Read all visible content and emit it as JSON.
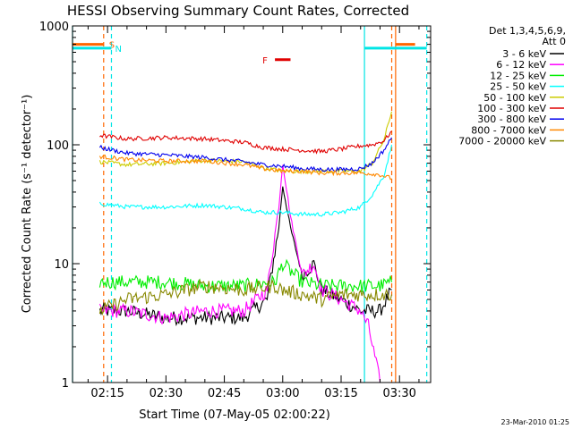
{
  "chart_data": {
    "type": "line",
    "title": "HESSI Observing Summary Count Rates, Corrected",
    "xlabel": "Start Time (07-May-05 02:00:22)",
    "ylabel": "Corrected Count Rate (s⁻¹ detector⁻¹)",
    "y_scale": "log",
    "ylim": [
      1,
      1000
    ],
    "xlim": [
      "02:06",
      "03:38"
    ],
    "x_ticks": [
      "02:15",
      "02:30",
      "02:45",
      "03:00",
      "03:15",
      "03:30"
    ],
    "y_ticks": [
      "1",
      "10",
      "100",
      "1000"
    ],
    "timestamp": "23-Mar-2010 01:25",
    "legend": {
      "header": [
        "Det 1,3,4,5,6,9,",
        "Att 0"
      ],
      "placement": "top-right"
    },
    "flags": [
      {
        "label": "S",
        "color": "#ff6600",
        "value": 700,
        "start": "02:06",
        "end": "02:14"
      },
      {
        "label": "N",
        "color": "#00e5e5",
        "value": 650,
        "start": "02:06",
        "end": "02:16"
      },
      {
        "label": "F",
        "color": "#e00000",
        "value": 520,
        "start": "02:58",
        "end": "03:02"
      }
    ],
    "flag_lines": [
      {
        "color": "#ff6600",
        "value": 700,
        "start": "03:29",
        "end": "03:34"
      },
      {
        "color": "#00e5e5",
        "value": 650,
        "start": "03:21",
        "end": "03:37"
      }
    ],
    "vertical_markers": [
      {
        "time": "02:06",
        "color": "#00e5e5",
        "dashed": false
      },
      {
        "time": "02:14",
        "color": "#ff6600",
        "dashed": true
      },
      {
        "time": "02:16",
        "color": "#00e5e5",
        "dashed": true
      },
      {
        "time": "03:21",
        "color": "#00e5e5",
        "dashed": false
      },
      {
        "time": "03:28",
        "color": "#ff6600",
        "dashed": true
      },
      {
        "time": "03:29",
        "color": "#ff6600",
        "dashed": false
      },
      {
        "time": "03:37",
        "color": "#00e5e5",
        "dashed": true
      }
    ],
    "series": [
      {
        "name": "3 - 6 keV",
        "color": "#000000",
        "x": [
          "02:13",
          "02:20",
          "02:30",
          "02:40",
          "02:50",
          "02:56",
          "02:59",
          "03:00",
          "03:02",
          "03:05",
          "03:08",
          "03:10",
          "03:15",
          "03:20",
          "03:25",
          "03:28"
        ],
        "y": [
          4,
          4,
          3.5,
          3.5,
          3.5,
          5,
          20,
          45,
          20,
          8,
          10,
          6,
          5,
          4,
          4,
          6
        ]
      },
      {
        "name": "6 - 12 keV",
        "color": "#ff00ff",
        "x": [
          "02:13",
          "02:20",
          "02:30",
          "02:40",
          "02:50",
          "02:56",
          "02:59",
          "03:00",
          "03:02",
          "03:05",
          "03:08",
          "03:10",
          "03:15",
          "03:20",
          "03:22",
          "03:25"
        ],
        "y": [
          4,
          4,
          3.5,
          4,
          4,
          6,
          30,
          70,
          25,
          8,
          10,
          6,
          5,
          4,
          3,
          1
        ]
      },
      {
        "name": "12 - 25 keV",
        "color": "#00ee00",
        "x": [
          "02:13",
          "02:20",
          "02:30",
          "02:40",
          "02:50",
          "02:58",
          "03:00",
          "03:05",
          "03:10",
          "03:15",
          "03:20",
          "03:25",
          "03:28"
        ],
        "y": [
          7,
          7,
          7,
          6.5,
          6.5,
          7,
          10,
          7,
          6.5,
          6.5,
          6.5,
          6.5,
          7
        ]
      },
      {
        "name": "25 - 50 keV",
        "color": "#00ffff",
        "x": [
          "02:13",
          "02:20",
          "02:30",
          "02:40",
          "02:50",
          "02:55",
          "03:00",
          "03:05",
          "03:10",
          "03:15",
          "03:20",
          "03:23",
          "03:26",
          "03:28"
        ],
        "y": [
          32,
          30,
          30,
          31,
          29,
          27,
          27,
          26,
          26,
          27,
          30,
          38,
          55,
          100
        ]
      },
      {
        "name": "50 - 100 keV",
        "color": "#cccc00",
        "x": [
          "02:13",
          "02:20",
          "02:30",
          "02:40",
          "02:50",
          "02:55",
          "03:00",
          "03:05",
          "03:10",
          "03:15",
          "03:20",
          "03:23",
          "03:26",
          "03:28"
        ],
        "y": [
          72,
          68,
          70,
          74,
          72,
          64,
          60,
          60,
          60,
          60,
          60,
          70,
          110,
          190
        ]
      },
      {
        "name": "100 - 300 keV",
        "color": "#e00000",
        "x": [
          "02:13",
          "02:20",
          "02:30",
          "02:40",
          "02:50",
          "02:55",
          "03:00",
          "03:05",
          "03:10",
          "03:15",
          "03:20",
          "03:23",
          "03:26",
          "03:28"
        ],
        "y": [
          120,
          112,
          115,
          112,
          105,
          95,
          92,
          90,
          88,
          92,
          98,
          100,
          108,
          130
        ]
      },
      {
        "name": "300 - 800 keV",
        "color": "#0000ee",
        "x": [
          "02:13",
          "02:20",
          "02:30",
          "02:40",
          "02:50",
          "02:55",
          "03:00",
          "03:05",
          "03:10",
          "03:15",
          "03:20",
          "03:23",
          "03:26",
          "03:28"
        ],
        "y": [
          95,
          85,
          82,
          78,
          72,
          68,
          66,
          63,
          62,
          62,
          63,
          70,
          90,
          115
        ]
      },
      {
        "name": "800 - 7000 keV",
        "color": "#ff8800",
        "x": [
          "02:13",
          "02:20",
          "02:30",
          "02:40",
          "02:50",
          "02:55",
          "03:00",
          "03:05",
          "03:10",
          "03:15",
          "03:20",
          "03:23",
          "03:25",
          "03:28"
        ],
        "y": [
          80,
          75,
          73,
          73,
          68,
          63,
          60,
          60,
          58,
          58,
          58,
          57,
          56,
          52
        ]
      },
      {
        "name": "7000 - 20000 keV",
        "color": "#888800",
        "x": [
          "02:13",
          "02:20",
          "02:30",
          "02:40",
          "02:50",
          "02:58",
          "03:00",
          "03:05",
          "03:10",
          "03:15",
          "03:20",
          "03:25",
          "03:28"
        ],
        "y": [
          4,
          5,
          5.5,
          6.5,
          6,
          6.5,
          6,
          5.5,
          5,
          5.5,
          5.5,
          5.5,
          5.5
        ]
      }
    ]
  }
}
